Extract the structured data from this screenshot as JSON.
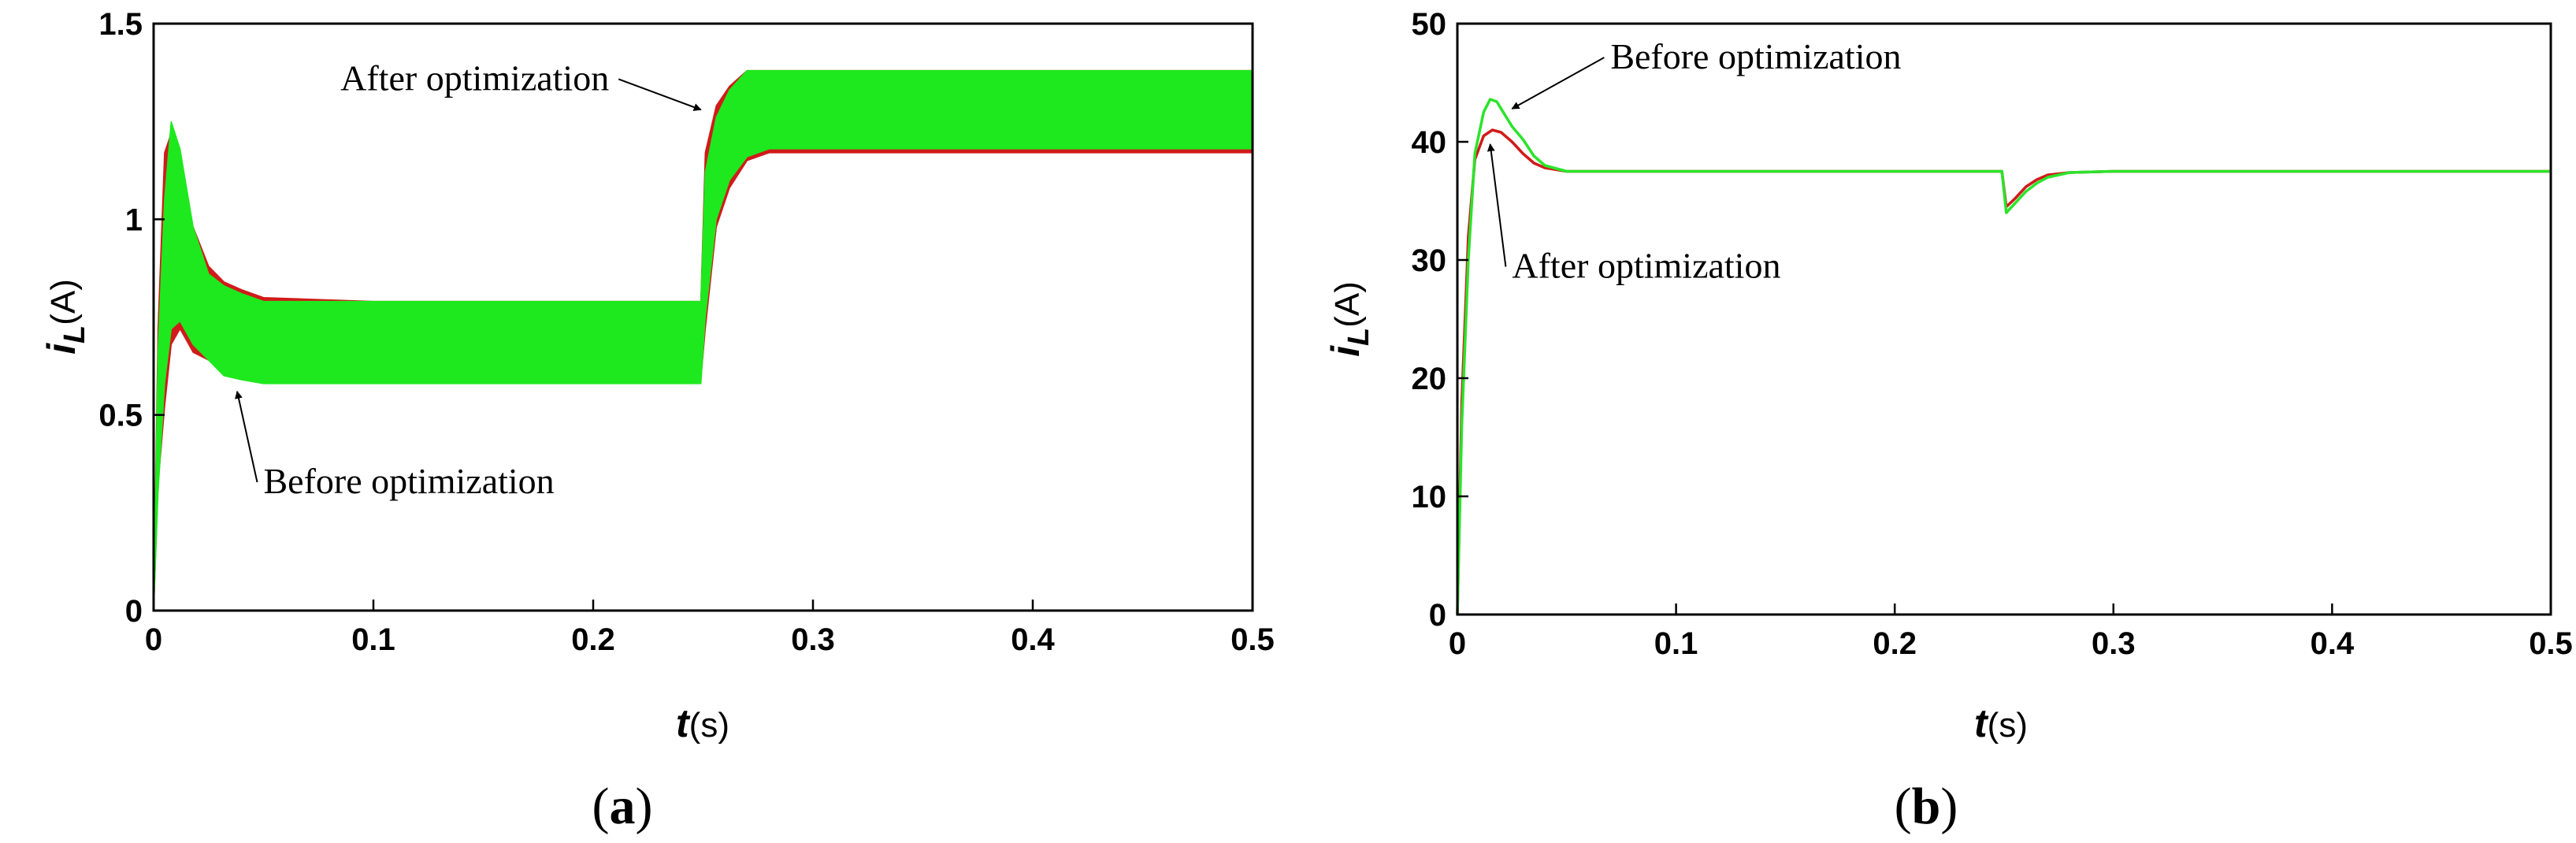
{
  "chart_data": [
    {
      "type": "line",
      "panel_label": "a",
      "ylabel": {
        "symbol": "i",
        "subscript": "L",
        "unit": "(A)"
      },
      "xlabel": {
        "symbol": "t",
        "unit": "(s)"
      },
      "xlim": [
        0,
        0.5
      ],
      "ylim": [
        0,
        1.5
      ],
      "xticks": [
        0,
        0.1,
        0.2,
        0.3,
        0.4,
        0.5
      ],
      "yticks": [
        0,
        0.5,
        1,
        1.5
      ],
      "xtick_labels": [
        "0",
        "0.1",
        "0.2",
        "0.3",
        "0.4",
        "0.5"
      ],
      "ytick_labels": [
        "0",
        "0.5",
        "1",
        "1.5"
      ],
      "grid": false,
      "series": [
        {
          "color": "#d11a1a",
          "band": {
            "x": [
              0,
              0.002,
              0.005,
              0.008,
              0.012,
              0.018,
              0.025,
              0.032,
              0.04,
              0.05,
              0.1,
              0.2,
              0.249,
              0.251,
              0.256,
              0.262,
              0.27,
              0.28,
              0.3,
              0.4,
              0.5
            ],
            "upper": [
              0,
              0.72,
              1.17,
              1.22,
              1.08,
              0.98,
              0.88,
              0.84,
              0.82,
              0.8,
              0.79,
              0.79,
              0.79,
              1.17,
              1.29,
              1.34,
              1.38,
              1.38,
              1.38,
              1.38,
              1.38
            ],
            "lower": [
              0,
              0.32,
              0.52,
              0.68,
              0.72,
              0.66,
              0.64,
              0.62,
              0.6,
              0.59,
              0.59,
              0.59,
              0.59,
              0.72,
              0.98,
              1.08,
              1.15,
              1.17,
              1.17,
              1.17,
              1.17
            ]
          }
        },
        {
          "color": "#1ee81e",
          "band": {
            "x": [
              0,
              0.002,
              0.005,
              0.008,
              0.012,
              0.018,
              0.025,
              0.032,
              0.04,
              0.05,
              0.1,
              0.2,
              0.249,
              0.251,
              0.256,
              0.262,
              0.27,
              0.28,
              0.3,
              0.4,
              0.5
            ],
            "upper": [
              0,
              0.66,
              1.05,
              1.25,
              1.18,
              0.98,
              0.86,
              0.83,
              0.81,
              0.79,
              0.79,
              0.79,
              0.79,
              1.12,
              1.26,
              1.33,
              1.38,
              1.38,
              1.38,
              1.38,
              1.38
            ],
            "lower": [
              0,
              0.3,
              0.58,
              0.72,
              0.74,
              0.68,
              0.64,
              0.6,
              0.59,
              0.58,
              0.58,
              0.58,
              0.58,
              0.75,
              1.0,
              1.1,
              1.16,
              1.18,
              1.18,
              1.18,
              1.18
            ]
          }
        }
      ],
      "annotations": [
        {
          "text": "After optimization",
          "x": 0.085,
          "y": 1.33,
          "arrow_to": [
            0.249,
            1.28
          ]
        },
        {
          "text": "Before optimization",
          "x": 0.05,
          "y": 0.3,
          "arrow_to": [
            0.038,
            0.56
          ]
        }
      ]
    },
    {
      "type": "line",
      "panel_label": "b",
      "ylabel": {
        "symbol": "i",
        "subscript": "L",
        "unit": "(A)"
      },
      "xlabel": {
        "symbol": "t",
        "unit": "(s)"
      },
      "xlim": [
        0,
        0.5
      ],
      "ylim": [
        0,
        50
      ],
      "xticks": [
        0,
        0.1,
        0.2,
        0.3,
        0.4,
        0.5
      ],
      "yticks": [
        0,
        10,
        20,
        30,
        40,
        50
      ],
      "xtick_labels": [
        "0",
        "0.1",
        "0.2",
        "0.3",
        "0.4",
        "0.5"
      ],
      "ytick_labels": [
        "0",
        "10",
        "20",
        "30",
        "40",
        "50"
      ],
      "grid": false,
      "series": [
        {
          "color": "#d11a1a",
          "x": [
            0,
            0.002,
            0.005,
            0.008,
            0.012,
            0.016,
            0.02,
            0.025,
            0.03,
            0.035,
            0.04,
            0.05,
            0.1,
            0.2,
            0.249,
            0.251,
            0.255,
            0.26,
            0.265,
            0.27,
            0.28,
            0.3,
            0.4,
            0.5
          ],
          "y": [
            0,
            18,
            32,
            38.5,
            40.5,
            41.0,
            40.8,
            40.0,
            39.0,
            38.2,
            37.8,
            37.5,
            37.5,
            37.5,
            37.5,
            34.5,
            35.2,
            36.2,
            36.8,
            37.2,
            37.4,
            37.5,
            37.5,
            37.5
          ]
        },
        {
          "color": "#2ae42a",
          "x": [
            0,
            0.002,
            0.005,
            0.008,
            0.012,
            0.015,
            0.018,
            0.021,
            0.025,
            0.03,
            0.035,
            0.04,
            0.05,
            0.1,
            0.2,
            0.249,
            0.251,
            0.255,
            0.26,
            0.265,
            0.27,
            0.28,
            0.3,
            0.4,
            0.5
          ],
          "y": [
            0,
            16,
            30,
            39.0,
            42.5,
            43.6,
            43.4,
            42.5,
            41.3,
            40.2,
            38.8,
            38.0,
            37.5,
            37.5,
            37.5,
            37.5,
            34.0,
            34.8,
            35.8,
            36.5,
            37.0,
            37.4,
            37.5,
            37.5,
            37.5
          ]
        }
      ],
      "annotations": [
        {
          "text": "Before optimization",
          "x": 0.07,
          "y": 46.2,
          "arrow_to": [
            0.025,
            42.8
          ]
        },
        {
          "text": "After optimization",
          "x": 0.025,
          "y": 28.5,
          "arrow_to": [
            0.015,
            39.8
          ]
        }
      ]
    }
  ]
}
